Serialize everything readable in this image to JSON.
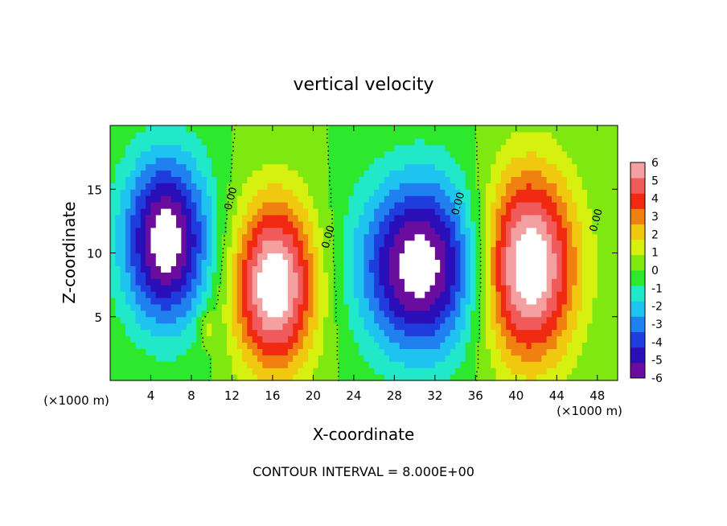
{
  "chart_data": {
    "type": "heatmap",
    "title": "vertical velocity",
    "xlabel": "X-coordinate",
    "ylabel": "Z-coordinate",
    "x_unit_left": "(×1000 m)",
    "x_unit_right": "(×1000 m)",
    "footer": "CONTOUR INTERVAL = 8.000E+00",
    "xlim": [
      0,
      50
    ],
    "ylim": [
      0,
      20
    ],
    "xticks": [
      4,
      8,
      12,
      16,
      20,
      24,
      28,
      32,
      36,
      40,
      44,
      48
    ],
    "yticks": [
      5,
      10,
      15
    ],
    "colorbar": {
      "vmin": -6,
      "vmax": 6,
      "ticks": [
        6,
        5,
        4,
        3,
        2,
        1,
        0,
        -1,
        -2,
        -3,
        -4,
        -5,
        -6
      ],
      "colors": [
        "#6a0d9e",
        "#2a0fb8",
        "#1f3ddc",
        "#2080f0",
        "#1ec3f0",
        "#20e8c8",
        "#2ee82e",
        "#7ee810",
        "#d6f010",
        "#f0c810",
        "#f08010",
        "#f02a10",
        "#f05a5a",
        "#f4a0a0"
      ]
    },
    "features": [
      {
        "kind": "downdraft",
        "x": 5.5,
        "z": 11,
        "sx": 4.2,
        "sz": 6.5,
        "amp": -6.8
      },
      {
        "kind": "updraft",
        "x": 16.2,
        "z": 7.5,
        "sx": 4.0,
        "sz": 6.6,
        "amp": 7.0
      },
      {
        "kind": "downdraft",
        "x": 30.5,
        "z": 9.0,
        "sx": 5.8,
        "sz": 6.8,
        "amp": -6.8
      },
      {
        "kind": "updraft",
        "x": 41.2,
        "z": 9.0,
        "sx": 4.6,
        "sz": 7.4,
        "amp": 7.2
      },
      {
        "kind": "updraft",
        "x": 9.6,
        "z": 4.2,
        "sx": 0.8,
        "sz": 1.4,
        "amp": 1.6
      }
    ],
    "contour_labels": [
      {
        "text": "0.00",
        "x": 12.2,
        "z": 14.2
      },
      {
        "text": "0.00",
        "x": 21.8,
        "z": 11.2
      },
      {
        "text": "0.00",
        "x": 34.6,
        "z": 13.8
      },
      {
        "text": "0.00",
        "x": 48.2,
        "z": 12.5
      }
    ]
  }
}
